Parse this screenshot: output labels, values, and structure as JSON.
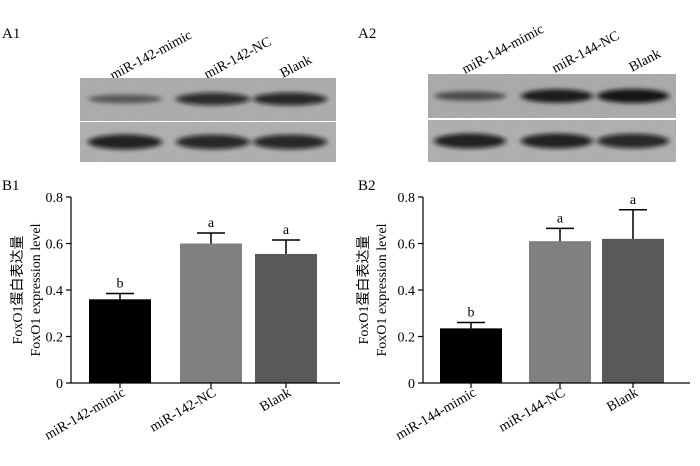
{
  "panel_labels": {
    "a1": "A1",
    "a2": "A2",
    "b1": "B1",
    "b2": "B2"
  },
  "blots": [
    {
      "lane_labels": [
        "miR-142-mimic",
        "miR-142-NC",
        "Blank"
      ],
      "target_band_intensity": [
        0.35,
        0.8,
        0.85
      ],
      "control_band_intensity": [
        0.9,
        0.85,
        0.85
      ]
    },
    {
      "lane_labels": [
        "miR-144-mimic",
        "miR-144-NC",
        "Blank"
      ],
      "target_band_intensity": [
        0.45,
        0.95,
        1.0
      ],
      "control_band_intensity": [
        0.9,
        0.9,
        0.85
      ]
    }
  ],
  "bar_colors": [
    "#000000",
    "#808080",
    "#595959"
  ],
  "chart_data": [
    {
      "type": "bar",
      "categories": [
        "miR-142-mimic",
        "miR-142-NC",
        "Blank"
      ],
      "values": [
        0.36,
        0.6,
        0.555
      ],
      "errors": [
        0.025,
        0.045,
        0.06
      ],
      "significance": [
        "b",
        "a",
        "a"
      ],
      "ylabel": [
        "FoxO1蛋白表达量",
        "FoxO1 expression level"
      ],
      "ylim": [
        0,
        0.8
      ],
      "yticks": [
        "0",
        "0.2",
        "0.4",
        "0.6",
        "0.8"
      ],
      "grid": false
    },
    {
      "type": "bar",
      "categories": [
        "miR-144-mimic",
        "miR-144-NC",
        "Blank"
      ],
      "values": [
        0.235,
        0.61,
        0.62
      ],
      "errors": [
        0.025,
        0.055,
        0.125
      ],
      "significance": [
        "b",
        "a",
        "a"
      ],
      "ylabel": [
        "FoxO1蛋白表达量",
        "FoxO1 expression level"
      ],
      "ylim": [
        0,
        0.8
      ],
      "yticks": [
        "0",
        "0.2",
        "0.4",
        "0.6",
        "0.8"
      ],
      "grid": false
    }
  ]
}
